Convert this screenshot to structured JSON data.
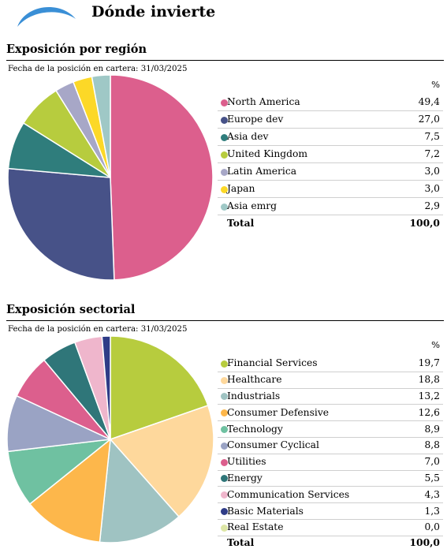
{
  "page": {
    "title": "Dónde invierte",
    "logo_icon": "globe-icon"
  },
  "sections": [
    {
      "title": "Exposición por región",
      "date_text": "Fecha de la posición en cartera: 31/03/2025",
      "value_header": "%",
      "total_label": "Total",
      "total_value": "100,0"
    },
    {
      "title": "Exposición sectorial",
      "date_text": "Fecha de la posición en cartera: 31/03/2025",
      "value_header": "%",
      "total_label": "Total",
      "total_value": "100,0"
    }
  ],
  "chart_data": [
    {
      "type": "pie",
      "title": "Exposición por región",
      "categories": [
        "North America",
        "Europe dev",
        "Asia dev",
        "United Kingdom",
        "Latin America",
        "Japan",
        "Asia emrg"
      ],
      "values": [
        49.4,
        27.0,
        7.5,
        7.2,
        3.0,
        3.0,
        2.9
      ],
      "value_labels": [
        "49,4",
        "27,0",
        "7,5",
        "7,2",
        "3,0",
        "3,0",
        "2,9"
      ],
      "colors": [
        "#dc5f8d",
        "#475288",
        "#2f7d7c",
        "#b7cc3e",
        "#a7a7c7",
        "#fcd827",
        "#9fc8c6"
      ]
    },
    {
      "type": "pie",
      "title": "Exposición sectorial",
      "categories": [
        "Financial Services",
        "Healthcare",
        "Industrials",
        "Consumer Defensive",
        "Technology",
        "Consumer Cyclical",
        "Utilities",
        "Energy",
        "Communication Services",
        "Basic Materials",
        "Real Estate"
      ],
      "values": [
        19.7,
        18.8,
        13.2,
        12.6,
        8.9,
        8.8,
        7.0,
        5.5,
        4.3,
        1.3,
        0.0
      ],
      "value_labels": [
        "19,7",
        "18,8",
        "13,2",
        "12,6",
        "8,9",
        "8,8",
        "7,0",
        "5,5",
        "4,3",
        "1,3",
        "0,0"
      ],
      "colors": [
        "#b7cc3e",
        "#fed89c",
        "#9fc3c2",
        "#fdb74b",
        "#6fc1a1",
        "#9aa3c4",
        "#dc5f8d",
        "#2f7679",
        "#efb6cc",
        "#2f3c87",
        "#dde6a6"
      ]
    }
  ]
}
